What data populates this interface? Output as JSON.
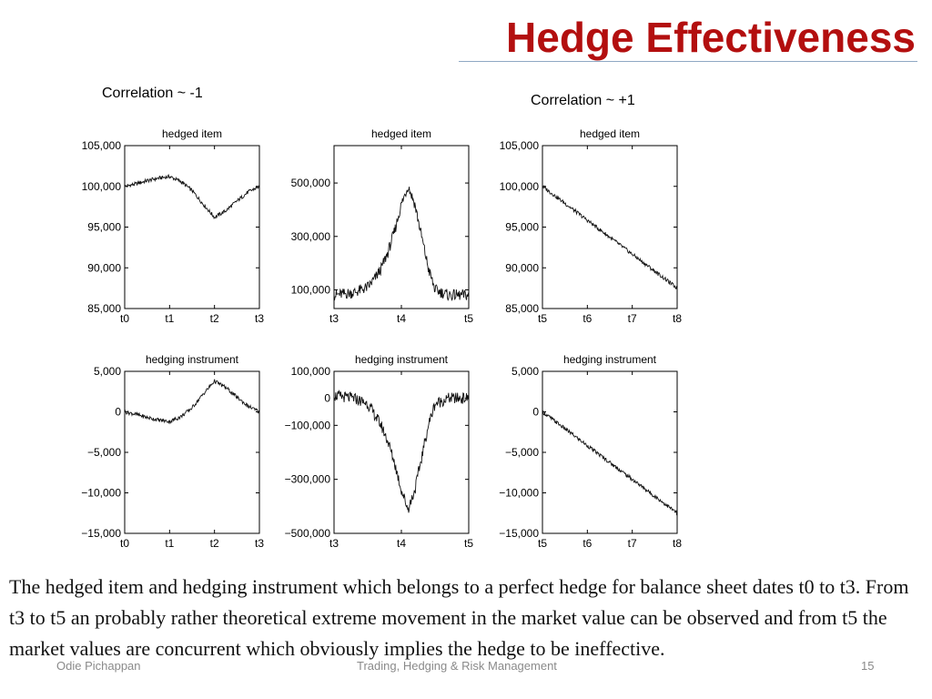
{
  "slide": {
    "title": "Hedge Effectiveness",
    "correlation_left": "Correlation ~ -1",
    "correlation_right": "Correlation ~ +1",
    "body_text": "The hedged item and hedging instrument which belongs to a perfect hedge for balance sheet dates t0 to t3. From t3 to t5 an probably rather theoretical extreme movement in the market value can be observed and from t5 the market values are concurrent which obviously implies the hedge to be ineffective.",
    "footer_author": "Odie Pichappan",
    "footer_course": "Trading, Hedging & Risk Management",
    "page_number": "15"
  },
  "colors": {
    "title": "#b30f0f",
    "line": "#111111",
    "axis": "#000000"
  },
  "chart_data": [
    {
      "type": "line",
      "title": "hedged item",
      "x_ticks": [
        "t0",
        "t1",
        "t2",
        "t3"
      ],
      "y_ticks": [
        {
          "v": 105000,
          "label": "105,000"
        },
        {
          "v": 100000,
          "label": "100,000"
        },
        {
          "v": 95000,
          "label": "95,000"
        },
        {
          "v": 90000,
          "label": "90,000"
        },
        {
          "v": 85000,
          "label": "85,000"
        }
      ],
      "ylim": [
        85000,
        105000
      ],
      "series": [
        {
          "x": [
            0,
            0.25,
            0.5,
            0.75,
            1,
            1.25,
            1.5,
            1.75,
            2,
            2.25,
            2.5,
            2.75,
            3
          ],
          "y": [
            100000,
            100300,
            100700,
            101000,
            101200,
            100600,
            99500,
            97800,
            96200,
            97000,
            98200,
            99300,
            100000
          ]
        }
      ]
    },
    {
      "type": "line",
      "title": "hedged item",
      "x_ticks": [
        "t3",
        "t4",
        "t5"
      ],
      "y_ticks": [
        {
          "v": 500000,
          "label": "500,000"
        },
        {
          "v": 300000,
          "label": "300,000"
        },
        {
          "v": 100000,
          "label": "100,000"
        }
      ],
      "ylim": [
        30000,
        640000
      ],
      "series": [
        {
          "x": [
            0,
            0.3,
            0.5,
            0.6,
            0.7,
            0.8,
            0.9,
            1.0,
            1.1,
            1.2,
            1.3,
            1.4,
            1.5,
            1.7,
            2
          ],
          "y": [
            80000,
            90000,
            110000,
            140000,
            180000,
            240000,
            320000,
            420000,
            490000,
            420000,
            300000,
            180000,
            100000,
            80000,
            80000
          ]
        }
      ]
    },
    {
      "type": "line",
      "title": "hedged item",
      "x_ticks": [
        "t5",
        "t6",
        "t7",
        "t8"
      ],
      "y_ticks": [
        {
          "v": 105000,
          "label": "105,000"
        },
        {
          "v": 100000,
          "label": "100,000"
        },
        {
          "v": 95000,
          "label": "95,000"
        },
        {
          "v": 90000,
          "label": "90,000"
        },
        {
          "v": 85000,
          "label": "85,000"
        }
      ],
      "ylim": [
        85000,
        105000
      ],
      "series": [
        {
          "x": [
            0,
            3
          ],
          "y": [
            100000,
            87500
          ]
        }
      ]
    },
    {
      "type": "line",
      "title": "hedging instrument",
      "x_ticks": [
        "t0",
        "t1",
        "t2",
        "t3"
      ],
      "y_ticks": [
        {
          "v": 5000,
          "label": "5,000"
        },
        {
          "v": 0,
          "label": "0"
        },
        {
          "v": -5000,
          "label": "−5,000"
        },
        {
          "v": -10000,
          "label": "−10,000"
        },
        {
          "v": -15000,
          "label": "−15,000"
        }
      ],
      "ylim": [
        -15000,
        5000
      ],
      "series": [
        {
          "x": [
            0,
            0.25,
            0.5,
            0.75,
            1,
            1.25,
            1.5,
            1.75,
            2,
            2.25,
            2.5,
            2.75,
            3
          ],
          "y": [
            0,
            -300,
            -700,
            -1000,
            -1200,
            -600,
            500,
            2200,
            3800,
            3000,
            1800,
            700,
            0
          ]
        }
      ]
    },
    {
      "type": "line",
      "title": "hedging instrument",
      "x_ticks": [
        "t3",
        "t4",
        "t5"
      ],
      "y_ticks": [
        {
          "v": 100000,
          "label": "100,000"
        },
        {
          "v": 0,
          "label": "0"
        },
        {
          "v": -100000,
          "label": "−100,000"
        },
        {
          "v": -300000,
          "label": "−300,000"
        },
        {
          "v": -500000,
          "label": "−500,000"
        }
      ],
      "ylim": [
        -500000,
        100000
      ],
      "series": [
        {
          "x": [
            0,
            0.3,
            0.5,
            0.6,
            0.7,
            0.8,
            0.9,
            1.0,
            1.1,
            1.2,
            1.3,
            1.4,
            1.5,
            1.7,
            2
          ],
          "y": [
            10000,
            0,
            -20000,
            -60000,
            -100000,
            -160000,
            -240000,
            -340000,
            -410000,
            -340000,
            -220000,
            -100000,
            -20000,
            0,
            0
          ]
        }
      ]
    },
    {
      "type": "line",
      "title": "hedging instrument",
      "x_ticks": [
        "t5",
        "t6",
        "t7",
        "t8"
      ],
      "y_ticks": [
        {
          "v": 5000,
          "label": "5,000"
        },
        {
          "v": 0,
          "label": "0"
        },
        {
          "v": -5000,
          "label": "−5,000"
        },
        {
          "v": -10000,
          "label": "−10,000"
        },
        {
          "v": -15000,
          "label": "−15,000"
        }
      ],
      "ylim": [
        -15000,
        5000
      ],
      "series": [
        {
          "x": [
            0,
            3
          ],
          "y": [
            0,
            -12500
          ]
        }
      ]
    }
  ]
}
